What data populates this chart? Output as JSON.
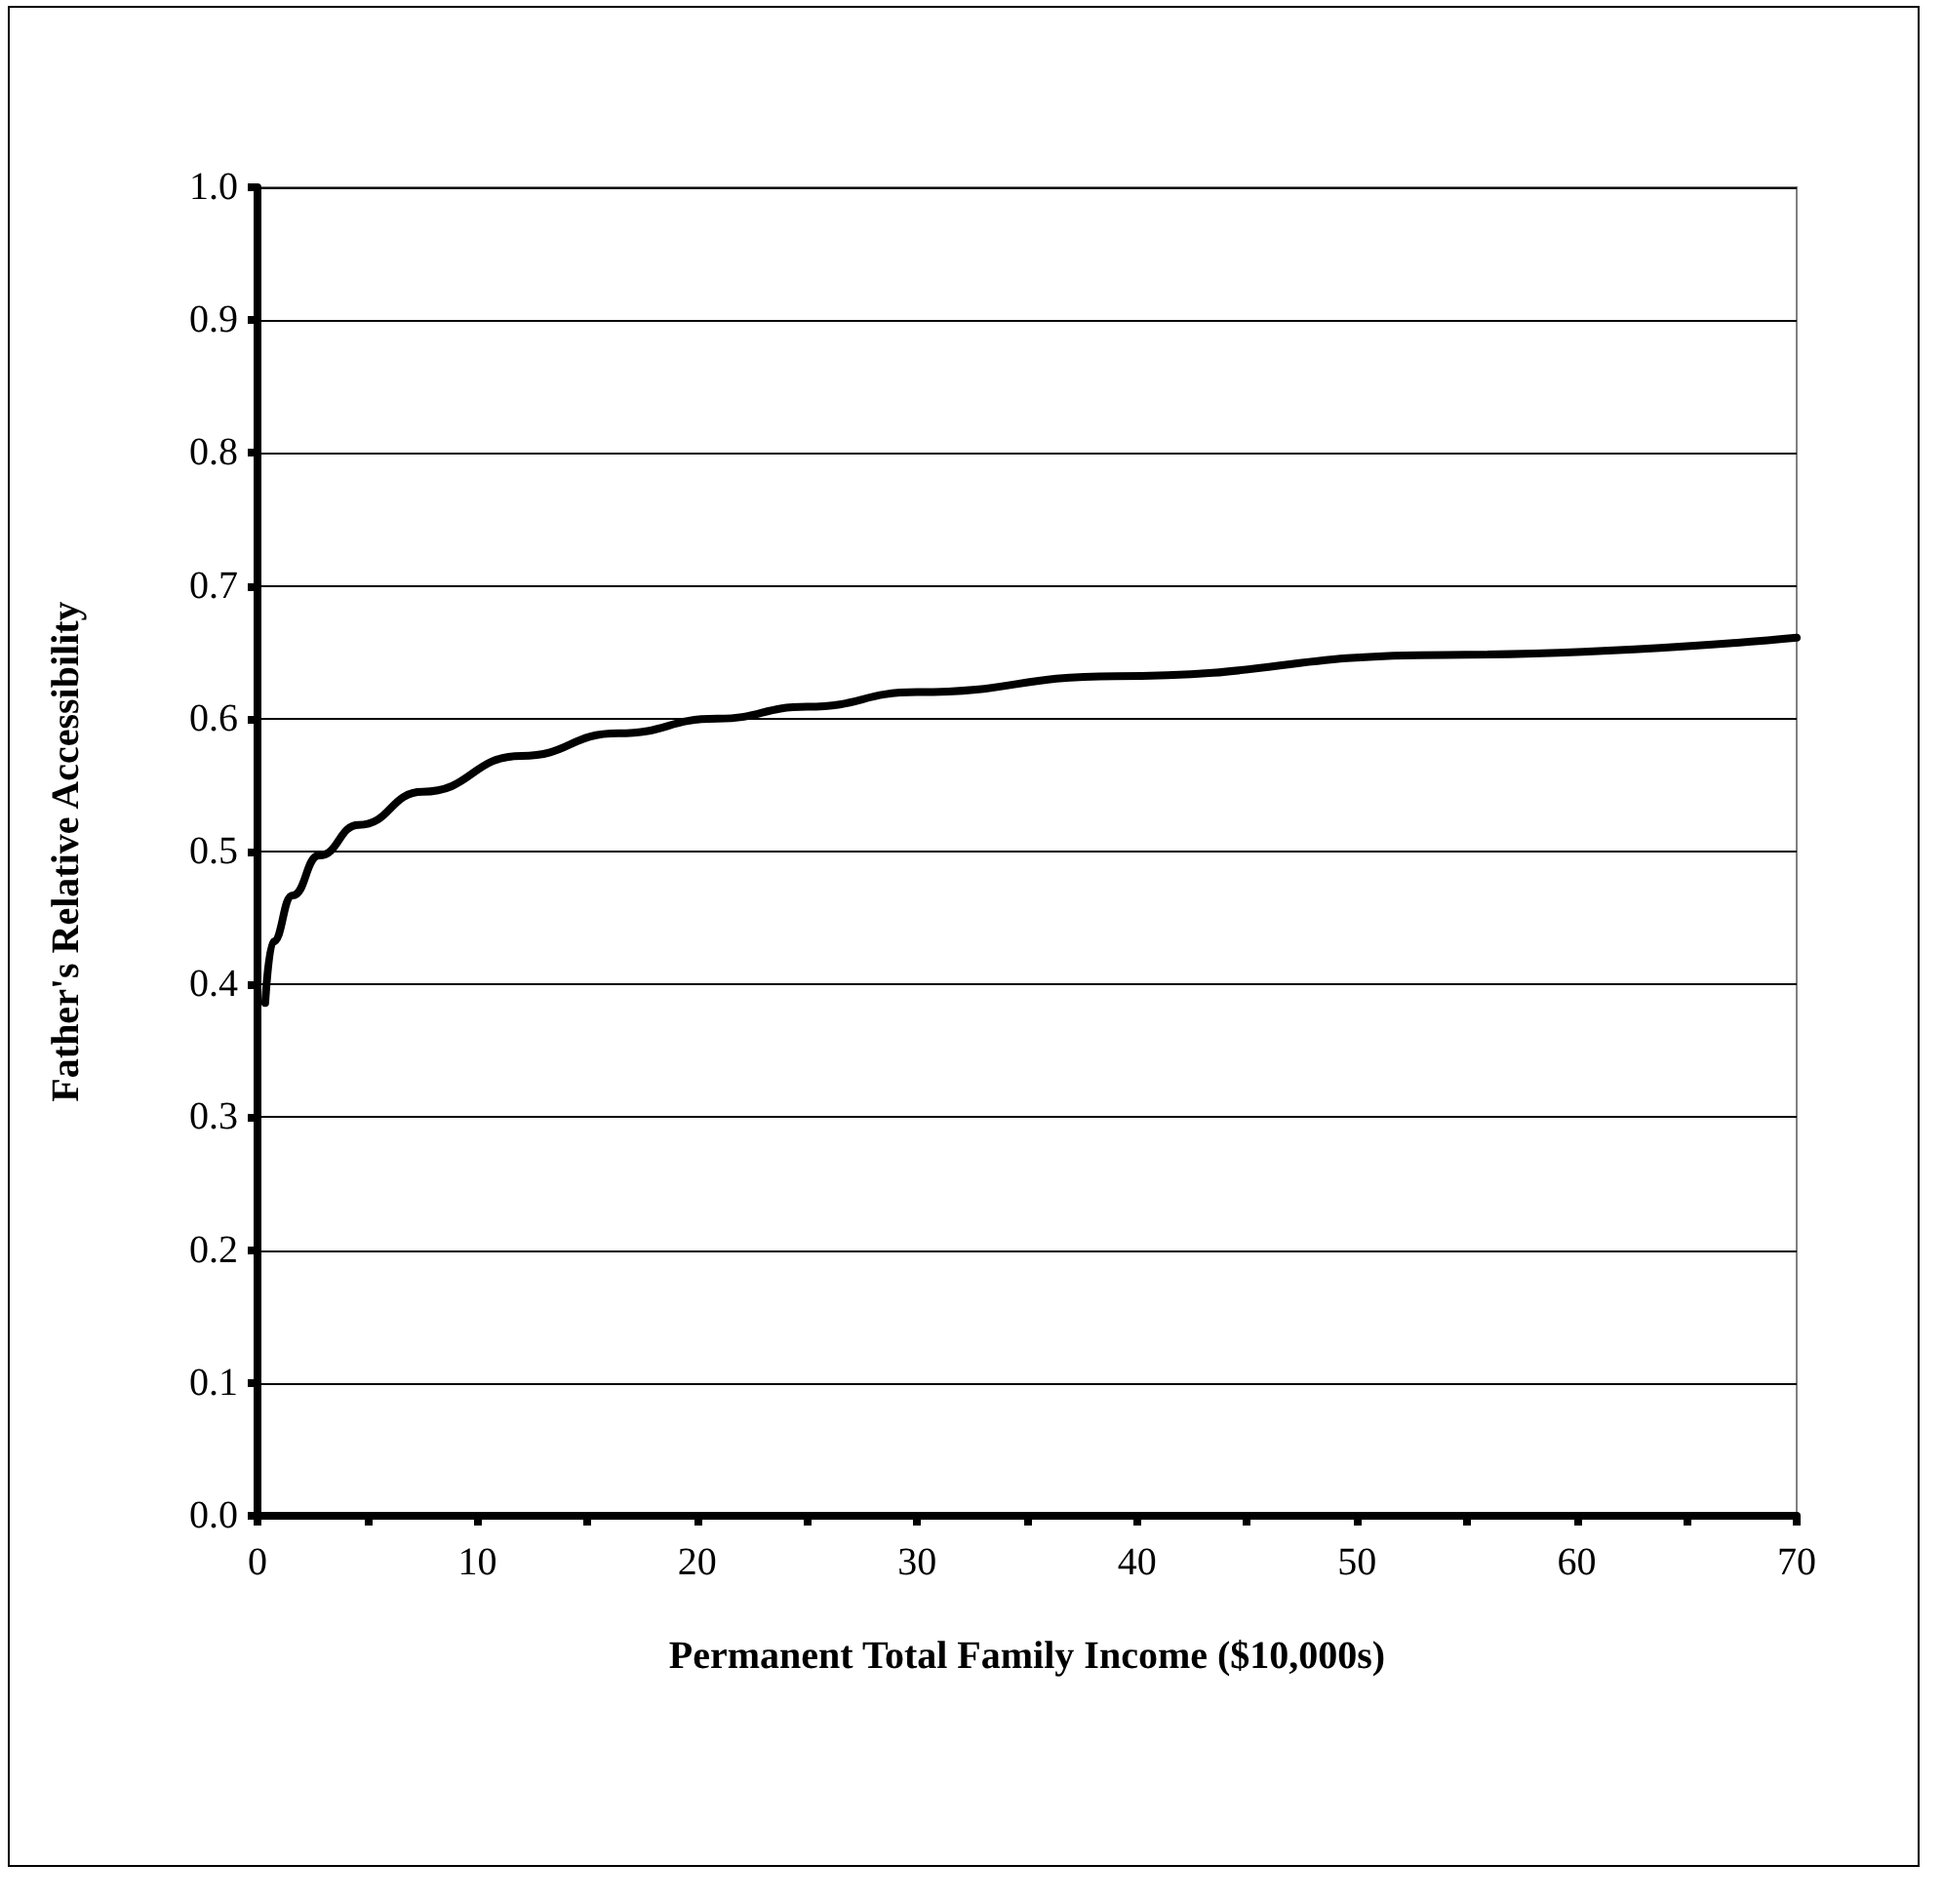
{
  "chart_data": {
    "type": "line",
    "xlabel": "Permanent Total Family Income ($10,000s)",
    "ylabel": "Father's Relative Accessibility",
    "series": [
      {
        "color": "#000000",
        "x": [
          0.35,
          0.7,
          1.6,
          2.8,
          4.6,
          7.5,
          12,
          16.4,
          20.9,
          25,
          30,
          39,
          54,
          70
        ],
        "values": [
          0.386,
          0.432,
          0.467,
          0.497,
          0.52,
          0.545,
          0.572,
          0.589,
          0.6,
          0.609,
          0.62,
          0.632,
          0.648,
          0.661
        ]
      }
    ],
    "xlim": [
      0,
      70
    ],
    "xticks": [
      0,
      {
        "value": 5,
        "label": null
      },
      10,
      {
        "value": 15,
        "label": null
      },
      20,
      {
        "value": 25,
        "label": null
      },
      30,
      {
        "value": 35,
        "label": null
      },
      40,
      {
        "value": 45,
        "label": null
      },
      50,
      {
        "value": 55,
        "label": null
      },
      60,
      {
        "value": 65,
        "label": null
      },
      70
    ],
    "ylim": [
      0,
      1
    ],
    "yticks": [
      {
        "value": 0,
        "label": "0.0"
      },
      0.1,
      0.2,
      0.3,
      0.4,
      0.5,
      0.6,
      0.7,
      0.8,
      0.9,
      {
        "value": 1,
        "label": "1.0"
      }
    ],
    "grid": "y",
    "marker": "none",
    "line_style": "solid"
  }
}
